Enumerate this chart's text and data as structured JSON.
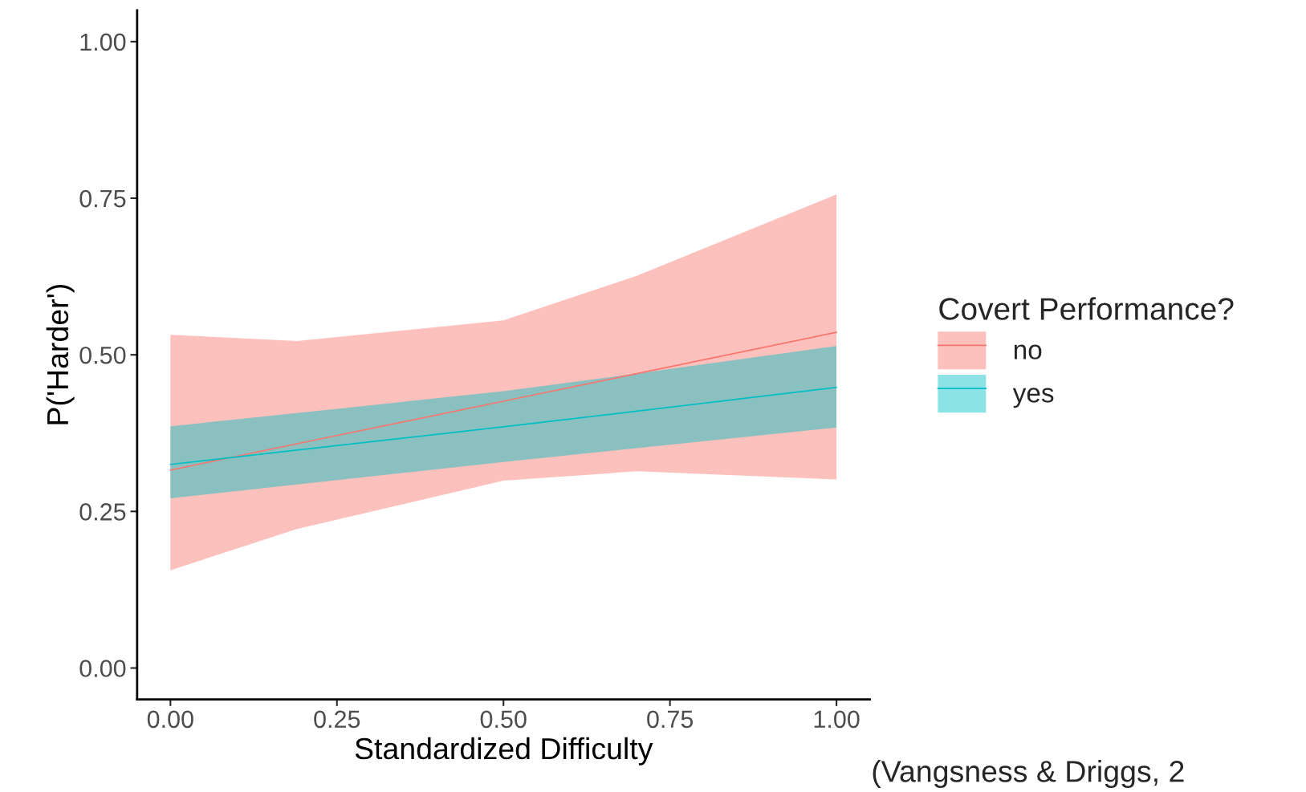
{
  "chart_data": {
    "type": "line",
    "xlabel": "Standardized Difficulty",
    "ylabel": "P('Harder')",
    "legend_title": "Covert Performance?",
    "x": [
      0,
      0.19,
      0.5,
      0.7,
      1
    ],
    "series": [
      {
        "name": "no",
        "color": "#f8766d",
        "values": [
          0.316,
          0.358,
          0.426,
          0.47,
          0.536
        ],
        "lower": [
          0.156,
          0.222,
          0.299,
          0.314,
          0.301
        ],
        "upper": [
          0.532,
          0.522,
          0.555,
          0.626,
          0.756
        ]
      },
      {
        "name": "yes",
        "color": "#00bfc4",
        "values": [
          0.325,
          0.348,
          0.385,
          0.41,
          0.448
        ],
        "lower": [
          0.271,
          0.293,
          0.329,
          0.351,
          0.384
        ],
        "upper": [
          0.386,
          0.407,
          0.442,
          0.47,
          0.514
        ]
      }
    ],
    "xlim": [
      -0.05,
      1.05
    ],
    "xticks": [
      {
        "value": 0,
        "label": "0.00"
      },
      0.25,
      {
        "value": 0.5,
        "label": "0.50"
      },
      0.75,
      {
        "value": 1,
        "label": "1.00"
      }
    ],
    "ylim": [
      -0.05,
      1.05
    ],
    "yticks": [
      {
        "value": 0,
        "label": "0.00"
      },
      0.25,
      {
        "value": 0.5,
        "label": "0.50"
      },
      0.75,
      {
        "value": 1,
        "label": "1.00"
      }
    ],
    "grid": false,
    "legend": "right",
    "marker": "none",
    "line_style": "solid",
    "annotations": [
      "(Vangsness & Driggs, 2"
    ]
  }
}
